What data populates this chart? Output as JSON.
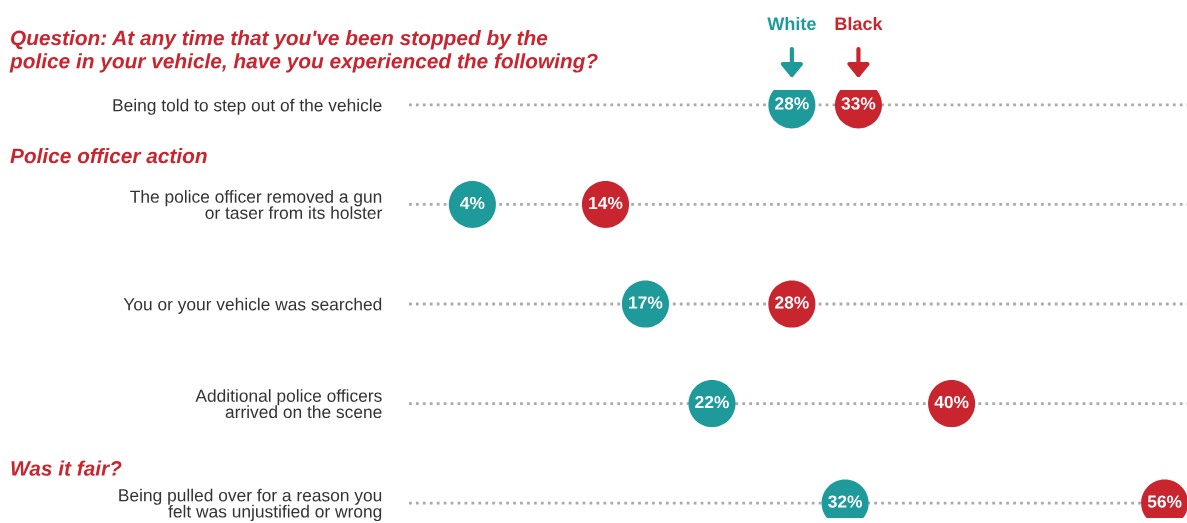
{
  "chart_data": {
    "type": "scatter",
    "orientation": "horizontal",
    "title": "Question: At any time that you've been stopped by the\npolice in your vehicle, have you experienced the following?",
    "categories": [
      "Being told to step out of the vehicle",
      "The police officer removed a gun\nor taser from its holster",
      "You or your vehicle was searched",
      "Additional police officers\narrived on the scene",
      "Being pulled over for a reason you\nfelt was unjustified or wrong"
    ],
    "series": [
      {
        "name": "White",
        "color": "#1f9a9b",
        "values": [
          28,
          4,
          17,
          22,
          32
        ],
        "value_labels": [
          "28%",
          "4%",
          "17%",
          "22%",
          "32%"
        ]
      },
      {
        "name": "Black",
        "color": "#c8252f",
        "values": [
          33,
          14,
          28,
          40,
          56
        ],
        "value_labels": [
          "33%",
          "14%",
          "28%",
          "40%",
          "56%"
        ]
      }
    ],
    "annotations": [
      "Police officer action",
      "Was it fair?"
    ],
    "tick_labels": "y",
    "grid": "y",
    "legend": "top",
    "marker": "circle"
  }
}
